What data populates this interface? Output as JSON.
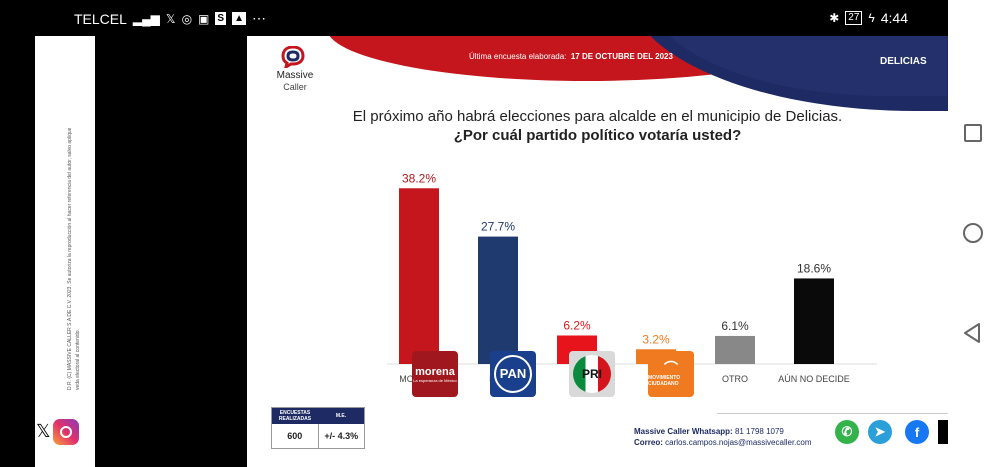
{
  "status_bar": {
    "carrier": "TELCEL",
    "extra_icons": "⋯",
    "battery": "27",
    "time": "4:44"
  },
  "side_panel": {
    "vertical_text": "D.R. (C) MASSIVE CALLER S.A DE C.V. 2023. Se autoriza la reproducción al hacer referencia del autor, salvo aplique veda electoral al contenido."
  },
  "slide": {
    "logo_line1": "Massive",
    "logo_line2": "Caller",
    "header_label": "Última encuesta elaborada:",
    "header_date": "17 DE OCTUBRE DEL 2023",
    "location": "DELICIAS",
    "question_line1": "El próximo año habrá elecciones para alcalde en el municipio de Delicias.",
    "question_line2": "¿Por cuál partido político votaría usted?",
    "party_logos": {
      "morena": "morena",
      "morena_sub": "La esperanza de México",
      "pan": "PAN",
      "pri": "PRI",
      "mc": "MOVIMIENTO CIUDADANO"
    },
    "survey_table": {
      "col1_header": "ENCUESTAS REALIZADAS",
      "col2_header": "M.E.",
      "col1_value": "600",
      "col2_value": "+/- 4.3%"
    },
    "contact": {
      "whatsapp_label": "Massive Caller Whatsapp:",
      "whatsapp_number": "81 1798 1079",
      "email_label": "Correo:",
      "email": "carlos.campos.nojas@massivecaller.com"
    }
  },
  "chart_data": {
    "type": "bar",
    "categories": [
      "MORENA",
      "PAN",
      "PRI",
      "MC",
      "OTRO",
      "AÚN NO DECIDE"
    ],
    "values": [
      38.2,
      27.7,
      6.2,
      3.2,
      6.1,
      18.6
    ],
    "data_labels": [
      "38.2%",
      "27.7%",
      "6.2%",
      "3.2%",
      "6.1%",
      "18.6%"
    ],
    "bar_colors": [
      "#c4161c",
      "#1e3a6e",
      "#e8141b",
      "#f07a1f",
      "#888888",
      "#0a0a0a"
    ],
    "label_colors": [
      "#b0171d",
      "#1e3a6e",
      "#e0141b",
      "#f07a1f",
      "#333333",
      "#333333"
    ],
    "ylim": [
      0,
      40
    ]
  }
}
